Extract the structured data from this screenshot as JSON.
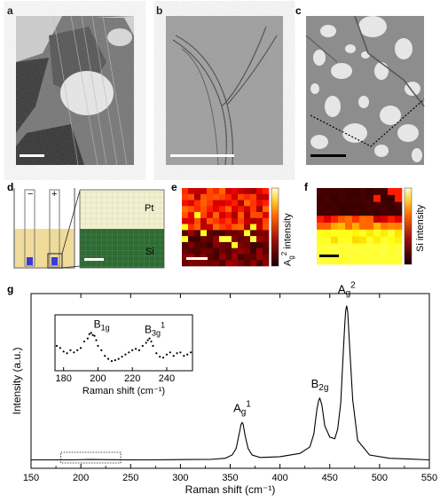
{
  "panel_labels": {
    "a": "a",
    "b": "b",
    "c": "c",
    "d": "d",
    "e": "e",
    "f": "f",
    "g": "g"
  },
  "panel_d": {
    "minus": "−",
    "plus": "+",
    "pt_label": "Pt",
    "si_label": "Si"
  },
  "panel_e": {
    "colorbar_label_main": "A",
    "colorbar_label_sub": "g",
    "colorbar_label_sup": "2",
    "colorbar_label_rest": " intensity"
  },
  "panel_f": {
    "colorbar_label": "Si intensity"
  },
  "colors": {
    "tem_light": "#e2e2e2",
    "tem_dark": "#3a3a3a",
    "heat_dark": "#1a0000",
    "heat_bright": "#ffff7a",
    "si_green": "#2e6b34",
    "pt_cream": "#f2f0d0"
  },
  "chart_data": {
    "type": "line",
    "xlabel": "Raman shift (cm⁻¹)",
    "ylabel": "Intensity (a.u.)",
    "xlim": [
      150,
      550
    ],
    "xticks": [
      150,
      200,
      250,
      300,
      350,
      400,
      450,
      500,
      550
    ],
    "series": [
      {
        "x": [
          150,
          170,
          190,
          210,
          230,
          250,
          270,
          290,
          310,
          330,
          345,
          352,
          356,
          359,
          361,
          362,
          363,
          365,
          368,
          372,
          380,
          400,
          420,
          430,
          434,
          437,
          439,
          440,
          442,
          445,
          450,
          455,
          458,
          461,
          463,
          465,
          466,
          467,
          468,
          470,
          473,
          478,
          490,
          510,
          530,
          550
        ],
        "y": [
          0.03,
          0.03,
          0.03,
          0.032,
          0.031,
          0.03,
          0.03,
          0.031,
          0.032,
          0.033,
          0.04,
          0.06,
          0.1,
          0.19,
          0.25,
          0.26,
          0.25,
          0.18,
          0.1,
          0.06,
          0.045,
          0.05,
          0.07,
          0.11,
          0.19,
          0.34,
          0.4,
          0.41,
          0.37,
          0.24,
          0.17,
          0.16,
          0.22,
          0.38,
          0.62,
          0.86,
          0.95,
          0.98,
          0.94,
          0.72,
          0.4,
          0.15,
          0.06,
          0.04,
          0.035,
          0.03
        ]
      }
    ],
    "peak_labels": [
      {
        "main": "A",
        "sub": "g",
        "sup": "1",
        "x": 362
      },
      {
        "main": "B",
        "sub": "2g",
        "sup": "",
        "x": 440
      },
      {
        "main": "A",
        "sub": "g",
        "sup": "2",
        "x": 467
      }
    ],
    "inset": {
      "type": "scatter",
      "xlabel": "Raman shift (cm⁻¹)",
      "xlim": [
        175,
        255
      ],
      "xticks": [
        180,
        200,
        220,
        240
      ],
      "x": [
        176,
        178,
        180,
        182,
        184,
        186,
        188,
        190,
        192,
        194,
        195,
        196,
        197,
        198,
        199,
        200,
        202,
        204,
        206,
        208,
        210,
        212,
        214,
        216,
        218,
        220,
        222,
        224,
        226,
        228,
        229,
        230,
        231,
        232,
        234,
        236,
        238,
        240,
        242,
        244,
        246,
        248,
        250,
        252,
        254
      ],
      "y": [
        0.45,
        0.4,
        0.32,
        0.28,
        0.35,
        0.3,
        0.35,
        0.4,
        0.55,
        0.62,
        0.72,
        0.75,
        0.7,
        0.68,
        0.58,
        0.45,
        0.35,
        0.22,
        0.15,
        0.1,
        0.12,
        0.15,
        0.2,
        0.25,
        0.3,
        0.35,
        0.38,
        0.35,
        0.45,
        0.52,
        0.58,
        0.62,
        0.55,
        0.45,
        0.28,
        0.2,
        0.18,
        0.25,
        0.3,
        0.22,
        0.28,
        0.3,
        0.22,
        0.25,
        0.3
      ],
      "peak_labels": [
        {
          "main": "B",
          "sub": "1g",
          "sup": "",
          "x": 197
        },
        {
          "main": "B",
          "sub": "3g",
          "sup": "1",
          "x": 230
        }
      ]
    }
  }
}
